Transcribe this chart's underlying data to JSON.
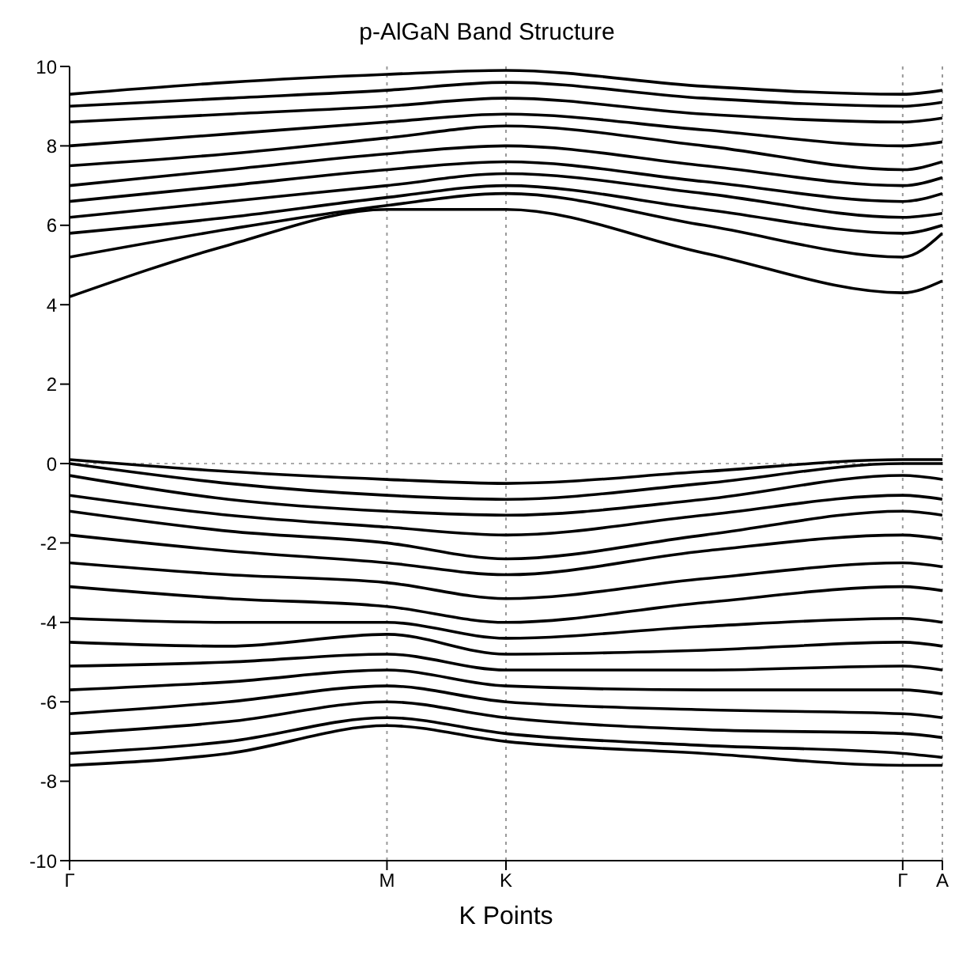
{
  "chart_data": {
    "type": "line",
    "title": "p-AlGaN Band Structure",
    "xlabel": "K Points",
    "categories": [
      "Γ",
      null,
      null,
      null,
      null,
      null,
      null,
      null,
      "M",
      null,
      null,
      "K",
      null,
      null,
      null,
      null,
      null,
      null,
      null,
      null,
      null,
      "Γ",
      "A"
    ],
    "ylim": [
      -10,
      10
    ],
    "yticks": [
      -10,
      -8,
      -6,
      -4,
      -2,
      0,
      2,
      4,
      6,
      8,
      10
    ],
    "grid": "x",
    "line_style": "solid",
    "marker": "none",
    "ref_lines": [
      {
        "axis": "y",
        "value": 0,
        "color": "#aaaaaa",
        "line_style": "dotted"
      }
    ],
    "series": [
      {
        "color": "#000000",
        "values": [
          4.2,
          null,
          null,
          null,
          5.5,
          null,
          null,
          null,
          6.4,
          null,
          null,
          6.4,
          null,
          null,
          null,
          null,
          5.3,
          null,
          null,
          null,
          null,
          4.3,
          4.6
        ]
      },
      {
        "color": "#000000",
        "values": [
          5.2,
          null,
          null,
          null,
          5.9,
          null,
          null,
          null,
          6.5,
          null,
          null,
          6.8,
          null,
          null,
          null,
          null,
          6,
          null,
          null,
          null,
          null,
          5.2,
          5.8
        ]
      },
      {
        "color": "#000000",
        "values": [
          5.8,
          null,
          null,
          null,
          6.2,
          null,
          null,
          null,
          6.7,
          null,
          null,
          7,
          null,
          null,
          null,
          null,
          6.4,
          null,
          null,
          null,
          null,
          5.8,
          6
        ]
      },
      {
        "color": "#000000",
        "values": [
          6.2,
          null,
          null,
          null,
          6.6,
          null,
          null,
          null,
          7,
          null,
          null,
          7.3,
          null,
          null,
          null,
          null,
          6.8,
          null,
          null,
          null,
          null,
          6.2,
          6.3
        ]
      },
      {
        "color": "#000000",
        "values": [
          6.6,
          null,
          null,
          null,
          7,
          null,
          null,
          null,
          7.4,
          null,
          null,
          7.6,
          null,
          null,
          null,
          null,
          7.1,
          null,
          null,
          null,
          null,
          6.6,
          6.8
        ]
      },
      {
        "color": "#000000",
        "values": [
          7,
          null,
          null,
          null,
          7.4,
          null,
          null,
          null,
          7.8,
          null,
          null,
          8,
          null,
          null,
          null,
          null,
          7.5,
          null,
          null,
          null,
          null,
          7,
          7.2
        ]
      },
      {
        "color": "#000000",
        "values": [
          7.5,
          null,
          null,
          null,
          7.8,
          null,
          null,
          null,
          8.2,
          null,
          null,
          8.5,
          null,
          null,
          null,
          null,
          8,
          null,
          null,
          null,
          null,
          7.4,
          7.6
        ]
      },
      {
        "color": "#000000",
        "values": [
          8,
          null,
          null,
          null,
          8.3,
          null,
          null,
          null,
          8.6,
          null,
          null,
          8.8,
          null,
          null,
          null,
          null,
          8.4,
          null,
          null,
          null,
          null,
          8,
          8.1
        ]
      },
      {
        "color": "#000000",
        "values": [
          8.6,
          null,
          null,
          null,
          8.8,
          null,
          null,
          null,
          9,
          null,
          null,
          9.2,
          null,
          null,
          null,
          null,
          8.8,
          null,
          null,
          null,
          null,
          8.6,
          8.7
        ]
      },
      {
        "color": "#000000",
        "values": [
          9,
          null,
          null,
          null,
          9.2,
          null,
          null,
          null,
          9.4,
          null,
          null,
          9.6,
          null,
          null,
          null,
          null,
          9.2,
          null,
          null,
          null,
          null,
          9,
          9.1
        ]
      },
      {
        "color": "#000000",
        "values": [
          9.3,
          null,
          null,
          null,
          9.6,
          null,
          null,
          null,
          9.8,
          null,
          null,
          9.9,
          null,
          null,
          null,
          null,
          9.5,
          null,
          null,
          null,
          null,
          9.3,
          9.4
        ]
      },
      {
        "color": "#000000",
        "values": [
          0.1,
          null,
          null,
          null,
          -0.2,
          null,
          null,
          null,
          -0.4,
          null,
          null,
          -0.5,
          null,
          null,
          null,
          null,
          -0.2,
          null,
          null,
          null,
          null,
          0.1,
          0.1
        ]
      },
      {
        "color": "#000000",
        "values": [
          0,
          null,
          null,
          null,
          -0.5,
          null,
          null,
          null,
          -0.8,
          null,
          null,
          -0.9,
          null,
          null,
          null,
          null,
          -0.5,
          null,
          null,
          null,
          null,
          0,
          0
        ]
      },
      {
        "color": "#000000",
        "values": [
          -0.3,
          null,
          null,
          null,
          -0.9,
          null,
          null,
          null,
          -1.2,
          null,
          null,
          -1.3,
          null,
          null,
          null,
          null,
          -0.9,
          null,
          null,
          null,
          null,
          -0.3,
          -0.4
        ]
      },
      {
        "color": "#000000",
        "values": [
          -0.8,
          null,
          null,
          null,
          -1.3,
          null,
          null,
          null,
          -1.6,
          null,
          null,
          -1.8,
          null,
          null,
          null,
          null,
          -1.3,
          null,
          null,
          null,
          null,
          -0.8,
          -0.9
        ]
      },
      {
        "color": "#000000",
        "values": [
          -1.2,
          null,
          null,
          null,
          -1.7,
          null,
          null,
          null,
          -2,
          null,
          null,
          -2.4,
          null,
          null,
          null,
          null,
          -1.8,
          null,
          null,
          null,
          null,
          -1.2,
          -1.3
        ]
      },
      {
        "color": "#000000",
        "values": [
          -1.8,
          null,
          null,
          null,
          -2.2,
          null,
          null,
          null,
          -2.5,
          null,
          null,
          -2.8,
          null,
          null,
          null,
          null,
          -2.2,
          null,
          null,
          null,
          null,
          -1.8,
          -1.9
        ]
      },
      {
        "color": "#000000",
        "values": [
          -2.5,
          null,
          null,
          null,
          -2.8,
          null,
          null,
          null,
          -3,
          null,
          null,
          -3.4,
          null,
          null,
          null,
          null,
          -2.9,
          null,
          null,
          null,
          null,
          -2.5,
          -2.6
        ]
      },
      {
        "color": "#000000",
        "values": [
          -3.1,
          null,
          null,
          null,
          -3.4,
          null,
          null,
          null,
          -3.6,
          null,
          null,
          -4,
          null,
          null,
          null,
          null,
          -3.5,
          null,
          null,
          null,
          null,
          -3.1,
          -3.2
        ]
      },
      {
        "color": "#000000",
        "values": [
          -3.9,
          null,
          null,
          null,
          -4,
          null,
          null,
          null,
          -4,
          null,
          null,
          -4.4,
          null,
          null,
          null,
          null,
          -4.1,
          null,
          null,
          null,
          null,
          -3.9,
          -4
        ]
      },
      {
        "color": "#000000",
        "values": [
          -4.5,
          null,
          null,
          null,
          -4.6,
          null,
          null,
          null,
          -4.3,
          null,
          null,
          -4.8,
          null,
          null,
          null,
          null,
          -4.7,
          null,
          null,
          null,
          null,
          -4.5,
          -4.6
        ]
      },
      {
        "color": "#000000",
        "values": [
          -5.1,
          null,
          null,
          null,
          -5,
          null,
          null,
          null,
          -4.8,
          null,
          null,
          -5.2,
          null,
          null,
          null,
          null,
          -5.2,
          null,
          null,
          null,
          null,
          -5.1,
          -5.2
        ]
      },
      {
        "color": "#000000",
        "values": [
          -5.7,
          null,
          null,
          null,
          -5.5,
          null,
          null,
          null,
          -5.2,
          null,
          null,
          -5.6,
          null,
          null,
          null,
          null,
          -5.7,
          null,
          null,
          null,
          null,
          -5.7,
          -5.8
        ]
      },
      {
        "color": "#000000",
        "values": [
          -6.3,
          null,
          null,
          null,
          -6,
          null,
          null,
          null,
          -5.6,
          null,
          null,
          -6,
          null,
          null,
          null,
          null,
          -6.2,
          null,
          null,
          null,
          null,
          -6.3,
          -6.4
        ]
      },
      {
        "color": "#000000",
        "values": [
          -6.8,
          null,
          null,
          null,
          -6.5,
          null,
          null,
          null,
          -6,
          null,
          null,
          -6.4,
          null,
          null,
          null,
          null,
          -6.7,
          null,
          null,
          null,
          null,
          -6.8,
          -6.9
        ]
      },
      {
        "color": "#000000",
        "values": [
          -7.3,
          null,
          null,
          null,
          -7,
          null,
          null,
          null,
          -6.4,
          null,
          null,
          -6.8,
          null,
          null,
          null,
          null,
          -7.1,
          null,
          null,
          null,
          null,
          -7.3,
          -7.4
        ]
      },
      {
        "color": "#000000",
        "values": [
          -7.6,
          null,
          null,
          null,
          -7.3,
          null,
          null,
          null,
          -6.6,
          null,
          null,
          -7,
          null,
          null,
          null,
          null,
          -7.3,
          null,
          null,
          null,
          null,
          -7.6,
          -7.6
        ]
      }
    ]
  }
}
